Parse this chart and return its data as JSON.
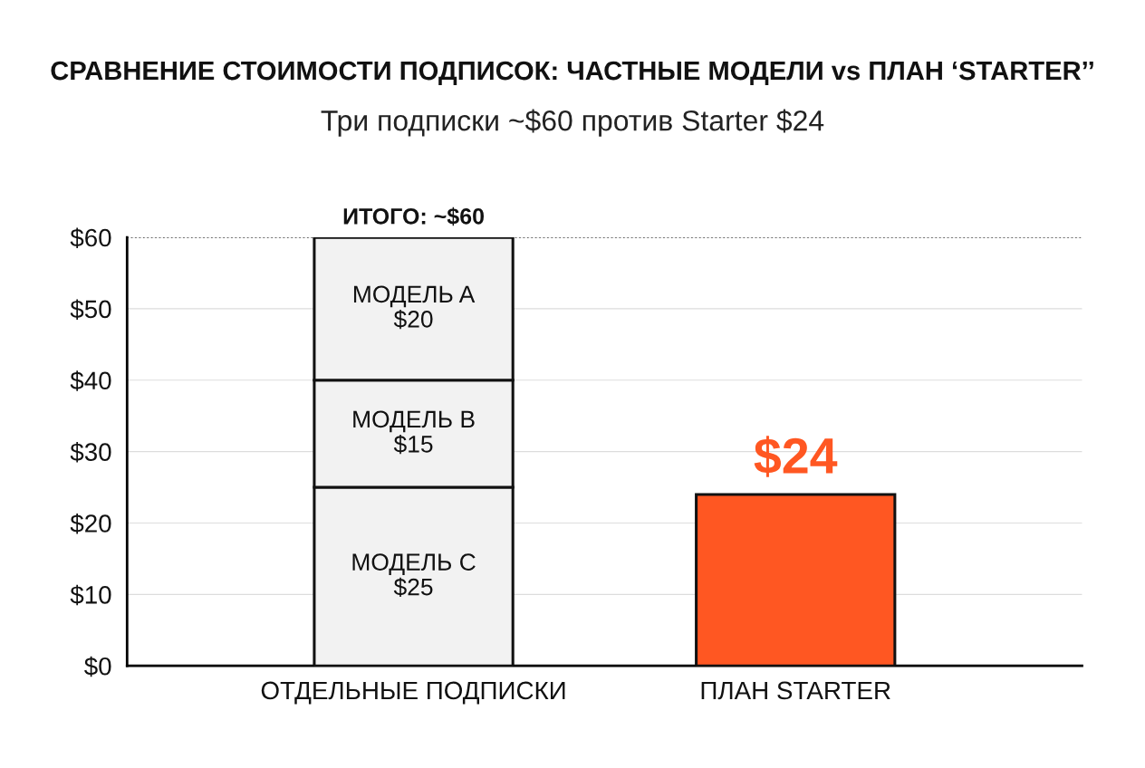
{
  "chart_data": {
    "type": "bar",
    "title": "СРАВНЕНИЕ СТОИМОСТИ ПОДПИСОК: ЧАСТНЫЕ МОДЕЛИ vs ПЛАН ‘STARTER’’",
    "subtitle": "Три подписки ~$60 против Starter $24",
    "categories": [
      "ОТДЕЛЬНЫЕ ПОДПИСКИ",
      "ПЛАН STARTER"
    ],
    "stacked": true,
    "series": [
      {
        "name": "МОДЕЛЬ C",
        "color": "#f2f2f2",
        "values": [
          25,
          null
        ],
        "value_labels": [
          "$25",
          null
        ]
      },
      {
        "name": "МОДЕЛЬ B",
        "color": "#f2f2f2",
        "values": [
          15,
          null
        ],
        "value_labels": [
          "$15",
          null
        ]
      },
      {
        "name": "МОДЕЛЬ A",
        "color": "#f2f2f2",
        "values": [
          20,
          null
        ],
        "value_labels": [
          "$20",
          null
        ]
      },
      {
        "color": "#ff5722",
        "values": [
          null,
          24
        ],
        "value_labels": [
          null,
          "$24"
        ]
      }
    ],
    "totals": [
      "ИТОГО: ~$60",
      null
    ],
    "ylim": [
      0,
      60
    ],
    "yticks": [
      {
        "value": 0,
        "label": "$0"
      },
      {
        "value": 10,
        "label": "$10"
      },
      {
        "value": 20,
        "label": "$20"
      },
      {
        "value": 30,
        "label": "$30"
      },
      {
        "value": 40,
        "label": "$40"
      },
      {
        "value": 50,
        "label": "$50"
      },
      {
        "value": 60,
        "label": "$60"
      }
    ],
    "ref_lines": [
      {
        "axis": "y",
        "value": 60,
        "color": "#333333",
        "line_style": "dotted"
      }
    ],
    "grid": "y",
    "legend": false
  }
}
